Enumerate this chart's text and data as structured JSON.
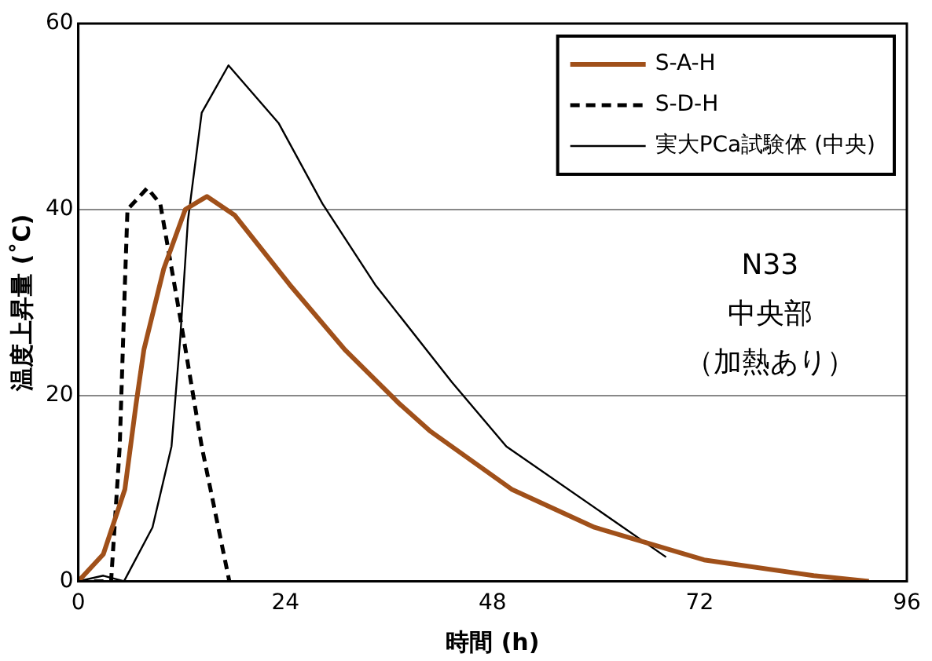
{
  "chart_data": {
    "type": "line",
    "xlabel": "時間 (h)",
    "ylabel": "温度上昇量 (˚C)",
    "xlim": [
      0,
      96
    ],
    "xticks": [
      0,
      24,
      48,
      72,
      96
    ],
    "ylim": [
      0,
      60
    ],
    "yticks": [
      0,
      20,
      40,
      60
    ],
    "grid": "y",
    "legend": "top right",
    "marker": "none",
    "annotations": [
      "N33",
      "中央部",
      "（加熱あり）"
    ],
    "series": [
      {
        "name": "S-A-H",
        "color": "#a0501a",
        "line_style": "solid",
        "x": [
          0,
          2.9,
          5.4,
          6.7,
          7.6,
          9.9,
          12.4,
          14.9,
          18.1,
          24.5,
          30.9,
          37.2,
          40.7,
          50.2,
          59.8,
          72.5,
          85.2,
          91.6
        ],
        "values": [
          0,
          2.9,
          9.9,
          19.1,
          24.9,
          33.6,
          40,
          41.4,
          39.4,
          31.9,
          24.9,
          19.1,
          16.2,
          9.9,
          5.8,
          2.3,
          0.6,
          0
        ]
      },
      {
        "name": "S-D-H",
        "color": "#000000",
        "line_style": "dashed",
        "x": [
          0,
          3.8,
          4.8,
          5.4,
          5.7,
          8,
          9.5,
          11.8,
          14.3,
          17.5
        ],
        "values": [
          0,
          0,
          14.5,
          31.9,
          40,
          42.3,
          40.6,
          28.4,
          14.5,
          0
        ]
      },
      {
        "name": "実大PCa試験体 (中央)",
        "color": "#000000",
        "line_style": "solid",
        "x": [
          0,
          2.9,
          5.3,
          8.6,
          10.8,
          11.8,
          12.7,
          14.3,
          17.4,
          23.2,
          28.3,
          34.4,
          43.3,
          49.6,
          68.1
        ],
        "values": [
          0,
          0.6,
          0,
          5.8,
          14.5,
          26,
          38.8,
          50.4,
          55.5,
          49.3,
          40.6,
          31.9,
          21.4,
          14.5,
          2.6
        ]
      }
    ]
  }
}
